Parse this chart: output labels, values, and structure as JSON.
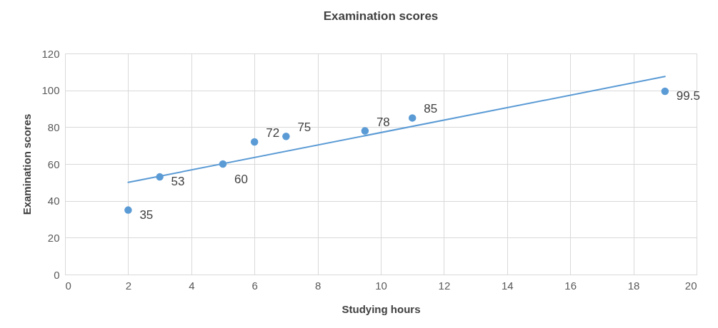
{
  "chart_data": {
    "type": "scatter",
    "title": "Examination scores",
    "xlabel": "Studying hours",
    "ylabel": "Examination scores",
    "series": [
      {
        "color": "#5b9bd5",
        "marker": "circle",
        "x": [
          2,
          3,
          5,
          6,
          7,
          9.5,
          11,
          19
        ],
        "values": [
          35,
          53,
          60,
          72,
          75,
          78,
          85,
          99.5
        ],
        "value_labels": [
          "35",
          "53",
          "60",
          "72",
          "75",
          "78",
          "85",
          "99.5"
        ]
      },
      {
        "type": "line",
        "color": "#5b9bd5",
        "line_style": "solid",
        "x": [
          2,
          19
        ],
        "values": [
          50,
          107.5
        ]
      }
    ],
    "xlim": [
      0,
      20
    ],
    "xticks": [
      0,
      2,
      4,
      6,
      8,
      10,
      12,
      14,
      16,
      18,
      20
    ],
    "ylim": [
      0,
      120
    ],
    "yticks": [
      0,
      20,
      40,
      60,
      80,
      100,
      120
    ],
    "grid": true
  }
}
